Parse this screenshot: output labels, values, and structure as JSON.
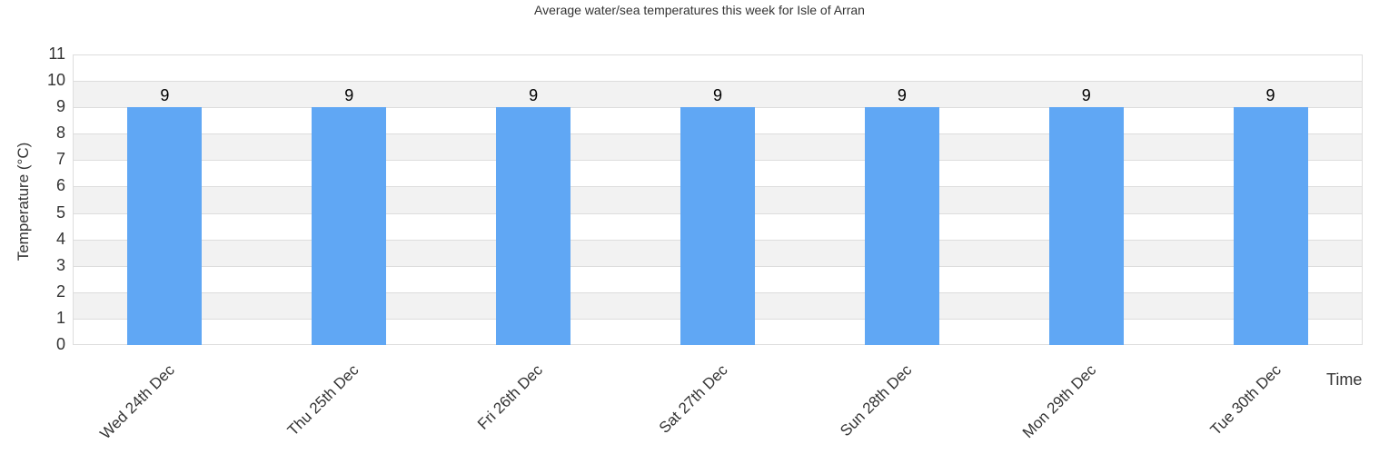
{
  "chart_data": {
    "type": "bar",
    "title": "Average water/sea temperatures this week for Isle of Arran",
    "xlabel": "Time",
    "ylabel": "Temperature (°C)",
    "categories": [
      "Wed 24th Dec",
      "Thu 25th Dec",
      "Fri 26th Dec",
      "Sat 27th Dec",
      "Sun 28th Dec",
      "Mon 29th Dec",
      "Tue 30th Dec"
    ],
    "values": [
      9,
      9,
      9,
      9,
      9,
      9,
      9
    ],
    "ylim": [
      0,
      11
    ],
    "yticks": [
      0,
      1,
      2,
      3,
      4,
      5,
      6,
      7,
      8,
      9,
      10,
      11
    ],
    "grid": true,
    "legend": null,
    "bar_color": "#60a7f4"
  }
}
